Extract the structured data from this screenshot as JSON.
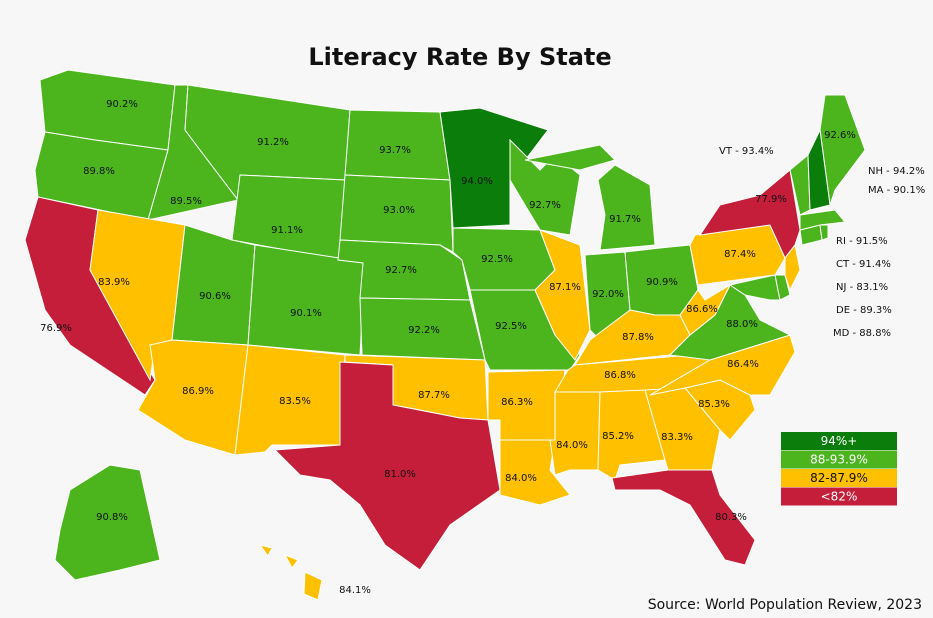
{
  "title": "Literacy Rate By State",
  "states": [
    {
      "label": "90.2%",
      "color": "#4cb51e"
    },
    {
      "label": "89.8%",
      "color": "#4cb51e"
    },
    {
      "label": "76.9%",
      "color": "#c41e3a"
    },
    {
      "label": "89.5%",
      "color": "#4cb51e"
    },
    {
      "label": "83.9%",
      "color": "#ffc000"
    },
    {
      "label": "91.2%",
      "color": "#4cb51e"
    },
    {
      "label": "91.1%",
      "color": "#4cb51e"
    },
    {
      "label": "90.6%",
      "color": "#4cb51e"
    },
    {
      "label": "90.1%",
      "color": "#4cb51e"
    },
    {
      "label": "86.9%",
      "color": "#ffc000"
    },
    {
      "label": "83.5%",
      "color": "#ffc000"
    },
    {
      "label": "93.7%",
      "color": "#4cb51e"
    },
    {
      "label": "93.0%",
      "color": "#4cb51e"
    },
    {
      "label": "92.7%",
      "color": "#4cb51e"
    },
    {
      "label": "92.2%",
      "color": "#4cb51e"
    },
    {
      "label": "87.7%",
      "color": "#ffc000"
    },
    {
      "label": "81.0%",
      "color": "#c41e3a"
    },
    {
      "label": "94.0%",
      "color": "#0a7d0a"
    },
    {
      "label": "92.5%",
      "color": "#4cb51e"
    },
    {
      "label": "92.5%",
      "color": "#4cb51e"
    },
    {
      "label": "86.3%",
      "color": "#ffc000"
    },
    {
      "label": "84.0%",
      "color": "#ffc000"
    },
    {
      "label": "92.7%",
      "color": "#4cb51e"
    },
    {
      "label": "87.1%",
      "color": "#ffc000"
    },
    {
      "label": "91.7%",
      "color": "#4cb51e"
    },
    {
      "label": "92.0%",
      "color": "#4cb51e"
    },
    {
      "label": "90.9%",
      "color": "#4cb51e"
    },
    {
      "label": "87.8%",
      "color": "#ffc000"
    },
    {
      "label": "86.8%",
      "color": "#ffc000"
    },
    {
      "label": "84.0%",
      "color": "#ffc000"
    },
    {
      "label": "85.2%",
      "color": "#ffc000"
    },
    {
      "label": "83.3%",
      "color": "#ffc000"
    },
    {
      "label": "80.3%",
      "color": "#c41e3a"
    },
    {
      "label": "85.3%",
      "color": "#ffc000"
    },
    {
      "label": "86.4%",
      "color": "#ffc000"
    },
    {
      "label": "88.0%",
      "color": "#4cb51e"
    },
    {
      "label": "86.6%",
      "color": "#ffc000"
    },
    {
      "label": "87.4%",
      "color": "#ffc000"
    },
    {
      "label": "77.9%",
      "color": "#c41e3a"
    },
    {
      "label": "92.6%",
      "color": "#4cb51e"
    },
    {
      "label": "90.8%",
      "color": "#4cb51e"
    },
    {
      "label": "84.1%",
      "color": "#ffc000"
    },
    {
      "color": "#4cb51e"
    },
    {
      "color": "#4cb51e"
    },
    {
      "color": "#ffc000"
    },
    {
      "color": "#4cb51e"
    },
    {
      "color": "#4cb51e"
    },
    {
      "color": "#4cb51e"
    },
    {
      "color": "#4cb51e"
    },
    {
      "color": "#0a7d0a"
    }
  ],
  "callouts": [
    "VT - 93.4%",
    "NH - 94.2%",
    "MA - 90.1%",
    "RI - 91.5%",
    "CT - 91.4%",
    "NJ - 83.1%",
    "DE - 89.3%",
    "MD - 88.8%"
  ],
  "legend": [
    {
      "label": "94%+",
      "color": "#0a7d0a"
    },
    {
      "label": "88-93.9%",
      "color": "#4cb51e"
    },
    {
      "label": "82-87.9%",
      "color": "#ffc000"
    },
    {
      "label": "<82%",
      "color": "#c41e3a"
    }
  ],
  "source": "Source: World Population Review, 2023"
}
